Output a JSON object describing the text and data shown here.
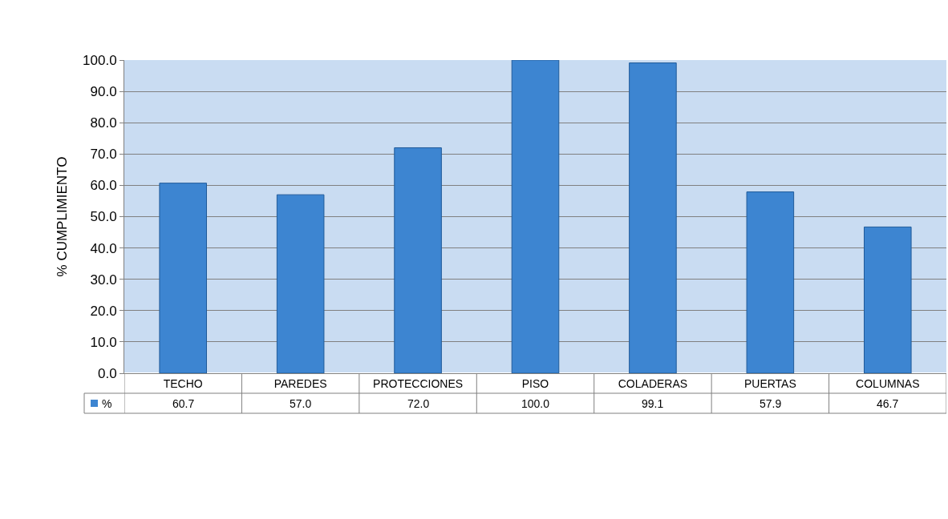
{
  "chart_data": {
    "type": "bar",
    "ylabel": "% CUMPLIMIENTO",
    "categories": [
      "TECHO",
      "PAREDES",
      "PROTECCIONES",
      "PISO",
      "COLADERAS",
      "PUERTAS",
      "COLUMNAS"
    ],
    "series": [
      {
        "name": "%",
        "color": "#3d85d1",
        "values": [
          60.7,
          57.0,
          72.0,
          100.0,
          99.1,
          57.9,
          46.7
        ]
      }
    ],
    "value_labels": [
      "60.7",
      "57.0",
      "72.0",
      "100.0",
      "99.1",
      "57.9",
      "46.7"
    ],
    "ylim": [
      0,
      100
    ],
    "yticks": [
      {
        "value": 0,
        "label": "0.0"
      },
      {
        "value": 10,
        "label": "10.0"
      },
      {
        "value": 20,
        "label": "20.0"
      },
      {
        "value": 30,
        "label": "30.0"
      },
      {
        "value": 40,
        "label": "40.0"
      },
      {
        "value": 50,
        "label": "50.0"
      },
      {
        "value": 60,
        "label": "60.0"
      },
      {
        "value": 70,
        "label": "70.0"
      },
      {
        "value": 80,
        "label": "80.0"
      },
      {
        "value": 90,
        "label": "90.0"
      },
      {
        "value": 100,
        "label": "100.0"
      }
    ],
    "grid": "y",
    "legend": "bottom"
  }
}
